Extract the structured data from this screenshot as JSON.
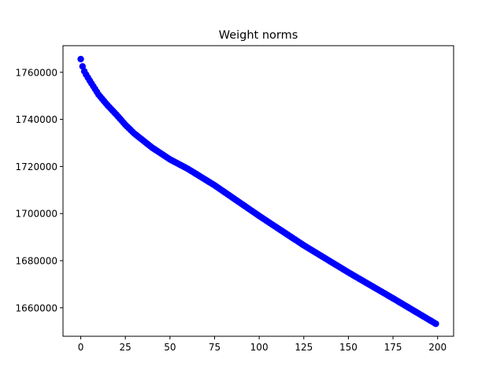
{
  "chart_data": {
    "type": "scatter",
    "title": "Weight norms",
    "xlabel": "",
    "ylabel": "",
    "xlim": [
      -9.95,
      208.95
    ],
    "ylim": [
      1647900,
      1771300
    ],
    "x_ticks": [
      0,
      25,
      50,
      75,
      100,
      125,
      150,
      175,
      200
    ],
    "y_ticks": [
      1660000,
      1680000,
      1700000,
      1720000,
      1740000,
      1760000
    ],
    "x_tick_labels": [
      "0",
      "25",
      "50",
      "75",
      "100",
      "125",
      "150",
      "175",
      "200"
    ],
    "y_tick_labels": [
      "1660000",
      "1680000",
      "1700000",
      "1720000",
      "1740000",
      "1760000"
    ],
    "grid": false,
    "marker_color": "#0000ff",
    "series": [
      {
        "x_start": 0,
        "x_end": 199,
        "anchors_x": [
          0,
          1,
          2,
          3,
          5,
          10,
          15,
          20,
          25,
          30,
          40,
          50,
          60,
          75,
          100,
          125,
          150,
          175,
          199
        ],
        "anchors_y": [
          1765600,
          1762500,
          1760400,
          1759000,
          1756500,
          1750500,
          1746000,
          1742000,
          1737700,
          1734000,
          1728000,
          1723000,
          1719000,
          1712000,
          1699000,
          1686500,
          1675000,
          1664000,
          1653200
        ]
      }
    ]
  }
}
